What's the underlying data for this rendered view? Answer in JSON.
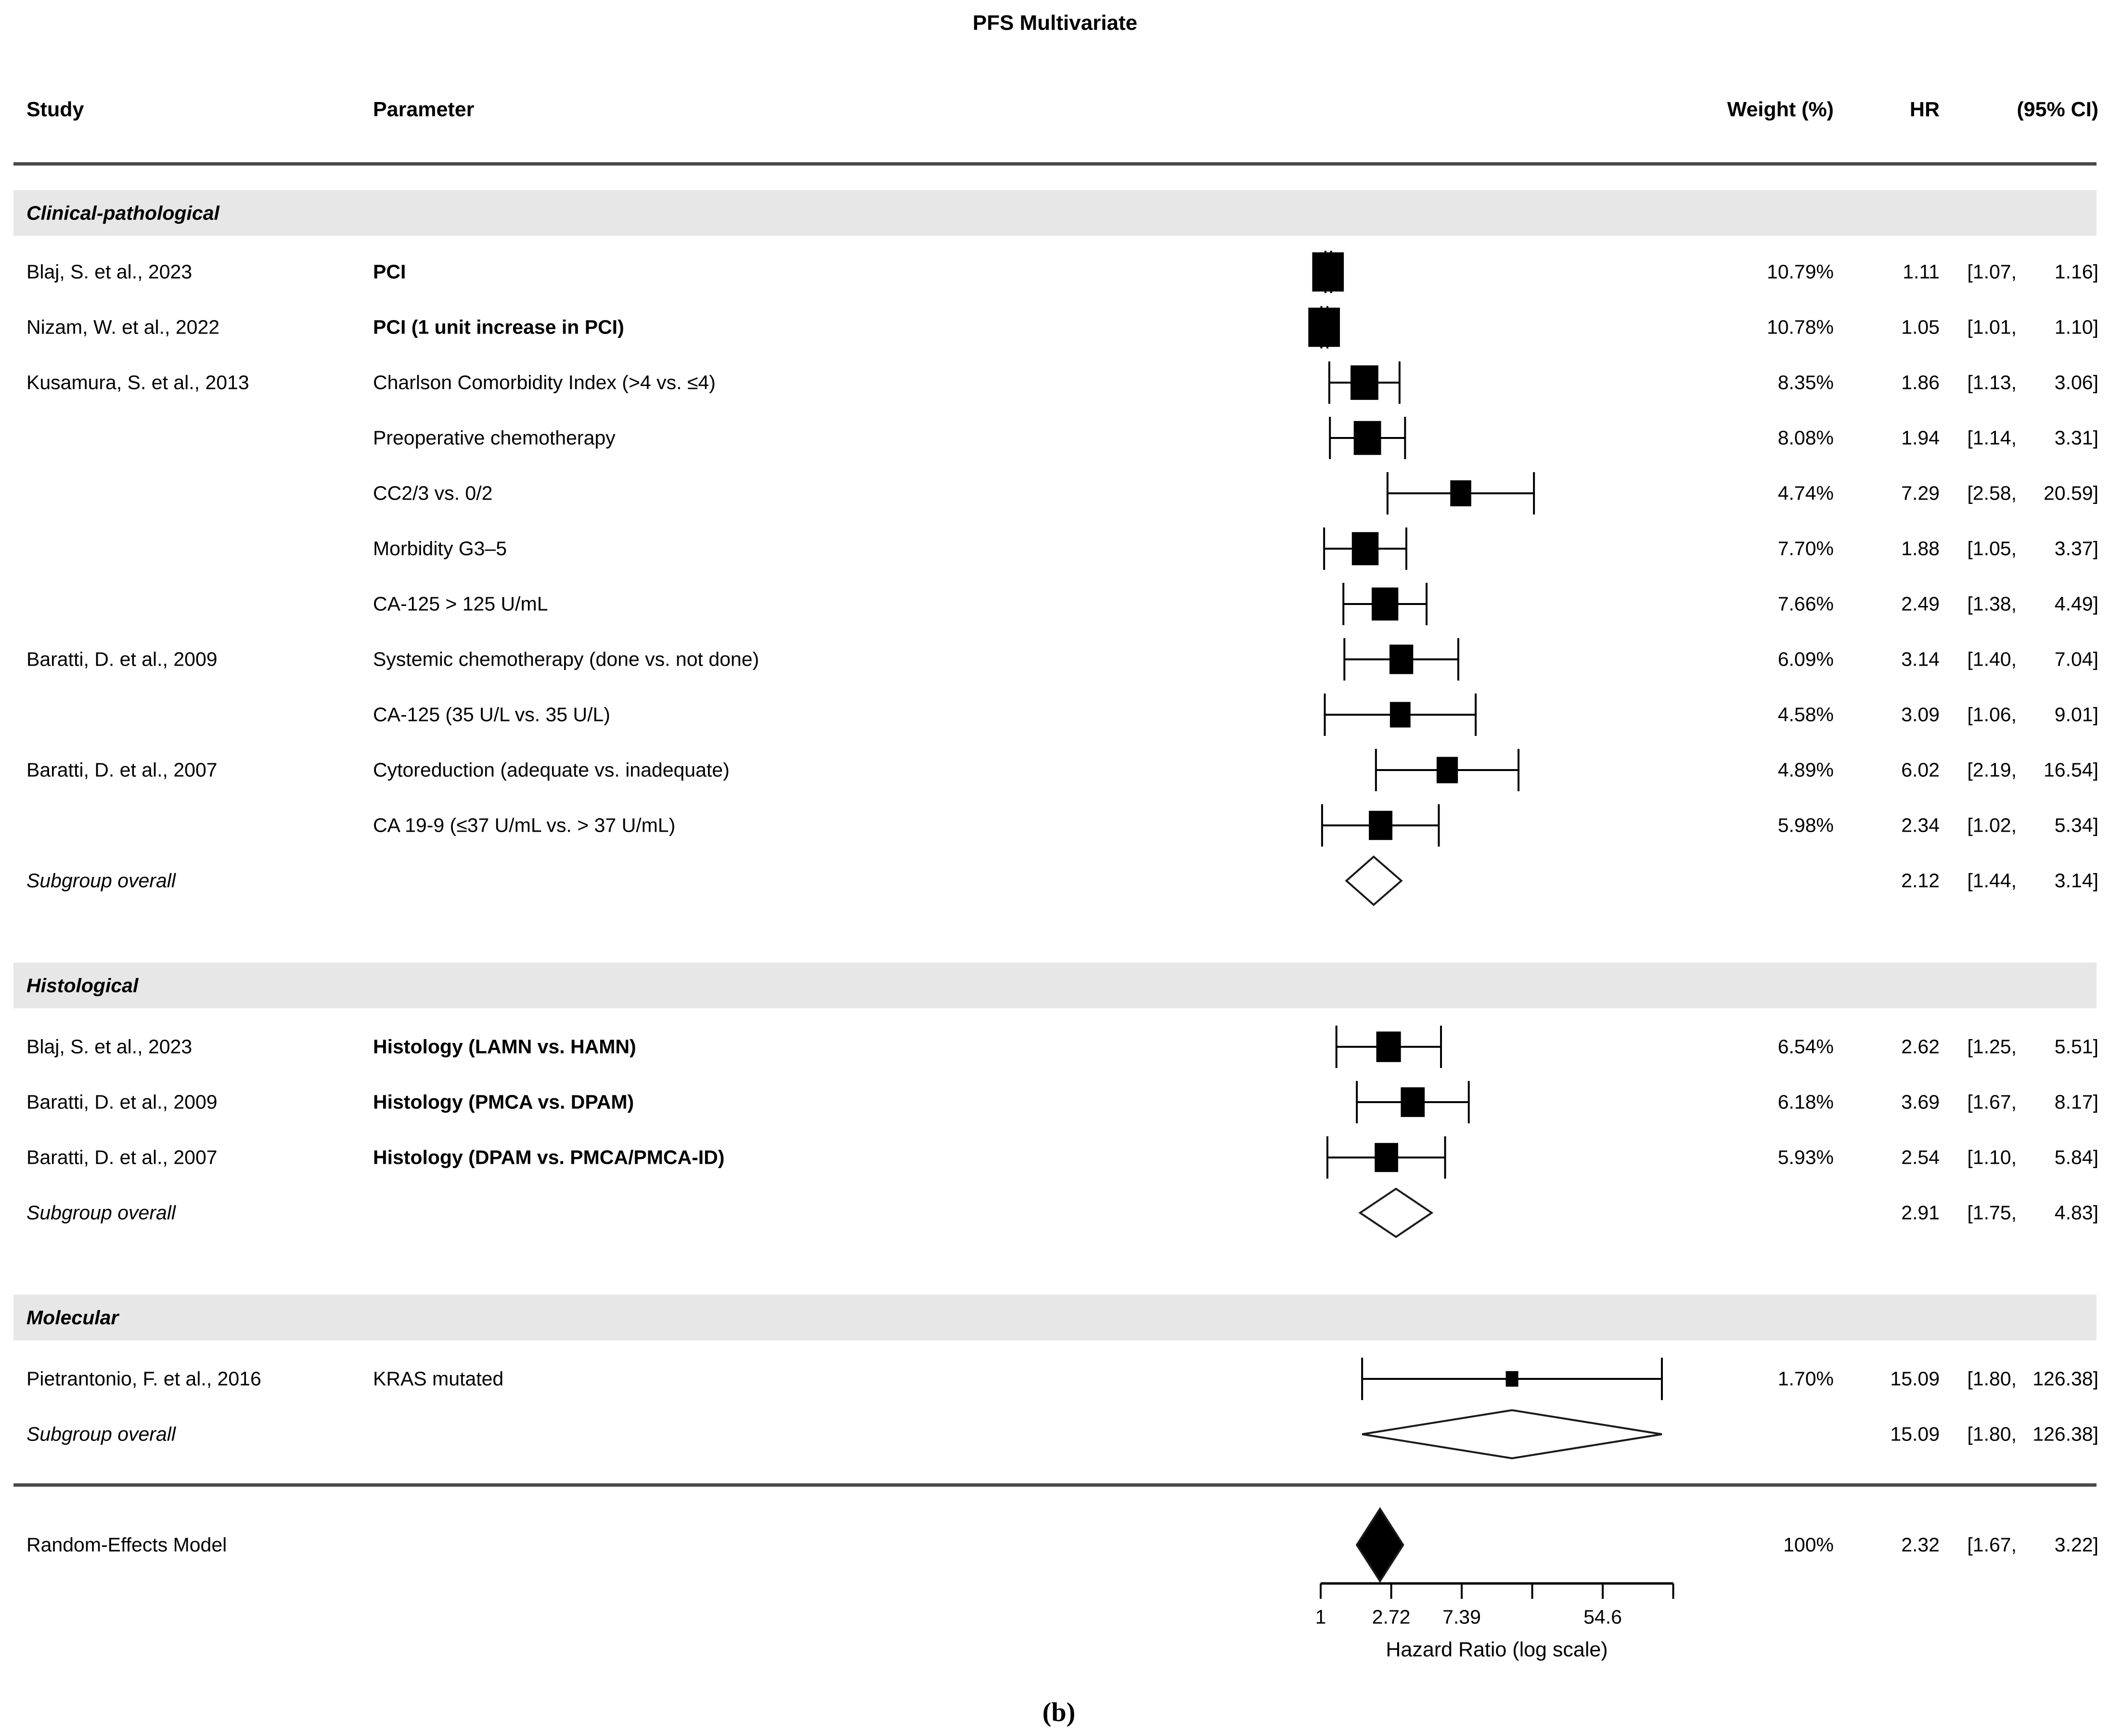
{
  "chart_data": {
    "type": "forest",
    "title": "PFS Multivariate",
    "caption": "(b)",
    "columns": {
      "study": "Study",
      "parameter": "Parameter",
      "weight": "Weight (%)",
      "hr": "HR",
      "ci": "(95% CI)"
    },
    "axis": {
      "label": "Hazard Ratio (log scale)",
      "scale": "log",
      "min": 1,
      "max": 148.4,
      "ticks": [
        {
          "value": 1,
          "label": "1"
        },
        {
          "value": 2.72,
          "label": "2.72"
        },
        {
          "value": 7.39,
          "label": "7.39"
        },
        {
          "value": 20.09,
          "label": ""
        },
        {
          "value": 54.6,
          "label": "54.6"
        },
        {
          "value": 148.4,
          "label": ""
        }
      ]
    },
    "sections": [
      {
        "name": "Clinical-pathological",
        "rows": [
          {
            "study": "Blaj, S. et al., 2023",
            "parameter": "PCI",
            "param_bold": true,
            "weight_text": "10.79%",
            "weight": 10.79,
            "hr": 1.11,
            "lo": 1.07,
            "hi": 1.16,
            "hr_text": "1.11",
            "lo_text": "[1.07,",
            "hi_text": "1.16]"
          },
          {
            "study": "Nizam, W. et al., 2022",
            "parameter": "PCI (1 unit increase in PCI)",
            "param_bold": true,
            "weight_text": "10.78%",
            "weight": 10.78,
            "hr": 1.05,
            "lo": 1.01,
            "hi": 1.1,
            "hr_text": "1.05",
            "lo_text": "[1.01,",
            "hi_text": "1.10]"
          },
          {
            "study": "Kusamura, S. et al., 2013",
            "parameter": "Charlson Comorbidity Index (>4 vs. ≤4)",
            "param_bold": false,
            "weight_text": "8.35%",
            "weight": 8.35,
            "hr": 1.86,
            "lo": 1.13,
            "hi": 3.06,
            "hr_text": "1.86",
            "lo_text": "[1.13,",
            "hi_text": "3.06]"
          },
          {
            "study": "",
            "parameter": "Preoperative chemotherapy",
            "param_bold": false,
            "weight_text": "8.08%",
            "weight": 8.08,
            "hr": 1.94,
            "lo": 1.14,
            "hi": 3.31,
            "hr_text": "1.94",
            "lo_text": "[1.14,",
            "hi_text": "3.31]"
          },
          {
            "study": "",
            "parameter": "CC2/3 vs. 0/2",
            "param_bold": false,
            "weight_text": "4.74%",
            "weight": 4.74,
            "hr": 7.29,
            "lo": 2.58,
            "hi": 20.59,
            "hr_text": "7.29",
            "lo_text": "[2.58,",
            "hi_text": "20.59]"
          },
          {
            "study": "",
            "parameter": "Morbidity G3–5",
            "param_bold": false,
            "weight_text": "7.70%",
            "weight": 7.7,
            "hr": 1.88,
            "lo": 1.05,
            "hi": 3.37,
            "hr_text": "1.88",
            "lo_text": "[1.05,",
            "hi_text": "3.37]"
          },
          {
            "study": "",
            "parameter": "CA-125 > 125 U/mL",
            "param_bold": false,
            "weight_text": "7.66%",
            "weight": 7.66,
            "hr": 2.49,
            "lo": 1.38,
            "hi": 4.49,
            "hr_text": "2.49",
            "lo_text": "[1.38,",
            "hi_text": "4.49]"
          },
          {
            "study": "Baratti, D. et al., 2009",
            "parameter": "Systemic chemotherapy (done vs. not done)",
            "param_bold": false,
            "weight_text": "6.09%",
            "weight": 6.09,
            "hr": 3.14,
            "lo": 1.4,
            "hi": 7.04,
            "hr_text": "3.14",
            "lo_text": "[1.40,",
            "hi_text": "7.04]"
          },
          {
            "study": "",
            "parameter": "CA-125 (35 U/L vs. 35 U/L)",
            "param_bold": false,
            "weight_text": "4.58%",
            "weight": 4.58,
            "hr": 3.09,
            "lo": 1.06,
            "hi": 9.01,
            "hr_text": "3.09",
            "lo_text": "[1.06,",
            "hi_text": "9.01]"
          },
          {
            "study": "Baratti, D. et al., 2007",
            "parameter": "Cytoreduction (adequate vs. inadequate)",
            "param_bold": false,
            "weight_text": "4.89%",
            "weight": 4.89,
            "hr": 6.02,
            "lo": 2.19,
            "hi": 16.54,
            "hr_text": "6.02",
            "lo_text": "[2.19,",
            "hi_text": "16.54]"
          },
          {
            "study": "",
            "parameter": "CA 19-9 (≤37 U/mL vs. > 37 U/mL)",
            "param_bold": false,
            "weight_text": "5.98%",
            "weight": 5.98,
            "hr": 2.34,
            "lo": 1.02,
            "hi": 5.34,
            "hr_text": "2.34",
            "lo_text": "[1.02,",
            "hi_text": "5.34]"
          }
        ],
        "subgroup": {
          "label": "Subgroup overall",
          "hr": 2.12,
          "lo": 1.44,
          "hi": 3.14,
          "hr_text": "2.12",
          "lo_text": "[1.44,",
          "hi_text": "3.14]"
        }
      },
      {
        "name": "Histological",
        "rows": [
          {
            "study": "Blaj, S. et al., 2023",
            "parameter": "Histology (LAMN vs. HAMN)",
            "param_bold": true,
            "weight_text": "6.54%",
            "weight": 6.54,
            "hr": 2.62,
            "lo": 1.25,
            "hi": 5.51,
            "hr_text": "2.62",
            "lo_text": "[1.25,",
            "hi_text": "5.51]"
          },
          {
            "study": "Baratti, D. et al., 2009",
            "parameter": "Histology (PMCA vs. DPAM)",
            "param_bold": true,
            "weight_text": "6.18%",
            "weight": 6.18,
            "hr": 3.69,
            "lo": 1.67,
            "hi": 8.17,
            "hr_text": "3.69",
            "lo_text": "[1.67,",
            "hi_text": "8.17]"
          },
          {
            "study": "Baratti, D. et al., 2007",
            "parameter": "Histology (DPAM vs. PMCA/PMCA-ID)",
            "param_bold": true,
            "weight_text": "5.93%",
            "weight": 5.93,
            "hr": 2.54,
            "lo": 1.1,
            "hi": 5.84,
            "hr_text": "2.54",
            "lo_text": "[1.10,",
            "hi_text": "5.84]"
          }
        ],
        "subgroup": {
          "label": "Subgroup overall",
          "hr": 2.91,
          "lo": 1.75,
          "hi": 4.83,
          "hr_text": "2.91",
          "lo_text": "[1.75,",
          "hi_text": "4.83]"
        }
      },
      {
        "name": "Molecular",
        "rows": [
          {
            "study": "Pietrantonio, F. et al., 2016",
            "parameter": "KRAS mutated",
            "param_bold": false,
            "weight_text": "1.70%",
            "weight": 1.7,
            "hr": 15.09,
            "lo": 1.8,
            "hi": 126.38,
            "hr_text": "15.09",
            "lo_text": "[1.80,",
            "hi_text": "126.38]"
          }
        ],
        "subgroup": {
          "label": "Subgroup overall",
          "hr": 15.09,
          "lo": 1.8,
          "hi": 126.38,
          "hr_text": "15.09",
          "lo_text": "[1.80,",
          "hi_text": "126.38]"
        }
      }
    ],
    "overall": {
      "label": "Random-Effects Model",
      "weight_text": "100%",
      "hr": 2.32,
      "lo": 1.67,
      "hi": 3.22,
      "hr_text": "2.32",
      "lo_text": "[1.67,",
      "hi_text": "3.22]"
    },
    "colors": {
      "marker": "#000000",
      "band": "#e7e7e7",
      "rule": "#4a4a4a",
      "diamond_stroke": "#1a1a1a"
    }
  }
}
